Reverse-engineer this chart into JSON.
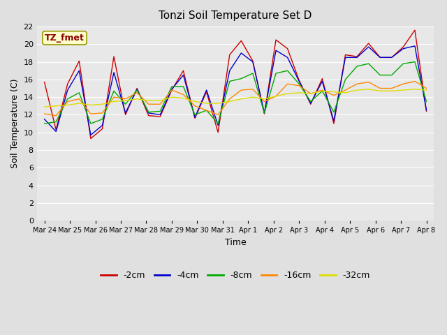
{
  "title": "Tonzi Soil Temperature Set D",
  "xlabel": "Time",
  "ylabel": "Soil Temperature (C)",
  "ylim": [
    0,
    22
  ],
  "yticks": [
    0,
    2,
    4,
    6,
    8,
    10,
    12,
    14,
    16,
    18,
    20,
    22
  ],
  "annotation_text": "TZ_fmet",
  "annotation_color": "#8b0000",
  "annotation_bg": "#ffffcc",
  "annotation_border": "#999900",
  "series_colors": [
    "#cc0000",
    "#0000cc",
    "#00aa00",
    "#ff8800",
    "#dddd00"
  ],
  "series_labels": [
    "-2cm",
    "-4cm",
    "-8cm",
    "-16cm",
    "-32cm"
  ],
  "x_tick_labels": [
    "Mar 24",
    "Mar 25",
    "Mar 26",
    "Mar 27",
    "Mar 28",
    "Mar 29",
    "Mar 30",
    "Mar 31",
    "Apr 1",
    "Apr 2",
    "Apr 3",
    "Apr 4",
    "Apr 5",
    "Apr 6",
    "Apr 7",
    "Apr 8"
  ],
  "bg_outer": "#e0e0e0",
  "bg_plot": "#e8e8e8",
  "grid_color": "#ffffff",
  "data": {
    "neg2cm": [
      15.7,
      10.3,
      15.5,
      18.1,
      9.3,
      10.4,
      18.6,
      12.0,
      15.0,
      11.9,
      11.8,
      14.8,
      17.0,
      11.6,
      14.6,
      10.0,
      18.8,
      20.4,
      18.1,
      12.1,
      20.5,
      19.5,
      15.9,
      13.2,
      16.1,
      11.0,
      18.8,
      18.6,
      20.1,
      18.5,
      18.5,
      19.7,
      21.6,
      12.4
    ],
    "neg4cm": [
      11.5,
      10.1,
      14.8,
      17.0,
      9.7,
      10.8,
      16.8,
      12.2,
      14.9,
      12.2,
      12.0,
      14.9,
      16.5,
      11.7,
      14.8,
      10.8,
      17.0,
      19.0,
      18.0,
      12.2,
      19.3,
      18.5,
      15.8,
      13.3,
      15.8,
      11.3,
      18.5,
      18.5,
      19.7,
      18.5,
      18.5,
      19.5,
      19.8,
      12.5
    ],
    "neg8cm": [
      11.0,
      11.2,
      13.8,
      14.5,
      11.0,
      11.5,
      14.7,
      13.2,
      14.8,
      12.3,
      12.4,
      15.2,
      15.2,
      12.0,
      12.5,
      11.0,
      15.8,
      16.1,
      16.7,
      12.2,
      16.7,
      17.0,
      15.5,
      13.5,
      14.7,
      12.3,
      16.0,
      17.5,
      17.8,
      16.5,
      16.5,
      17.8,
      18.0,
      13.5
    ],
    "neg16cm": [
      12.1,
      11.9,
      13.5,
      13.8,
      12.1,
      12.2,
      14.0,
      13.8,
      14.5,
      13.2,
      13.2,
      14.8,
      14.3,
      13.0,
      12.5,
      12.0,
      13.8,
      14.8,
      14.9,
      13.5,
      14.1,
      15.5,
      15.3,
      14.4,
      14.8,
      14.2,
      14.8,
      15.5,
      15.7,
      15.0,
      15.0,
      15.5,
      15.8,
      15.0
    ],
    "neg32cm": [
      12.9,
      13.0,
      13.1,
      13.3,
      13.1,
      13.2,
      13.5,
      13.6,
      13.8,
      13.6,
      13.6,
      14.0,
      13.9,
      13.5,
      13.3,
      13.3,
      13.5,
      13.8,
      14.0,
      13.8,
      14.1,
      14.4,
      14.5,
      14.4,
      14.7,
      14.6,
      14.5,
      14.8,
      14.9,
      14.7,
      14.7,
      14.8,
      14.9,
      14.8
    ]
  }
}
